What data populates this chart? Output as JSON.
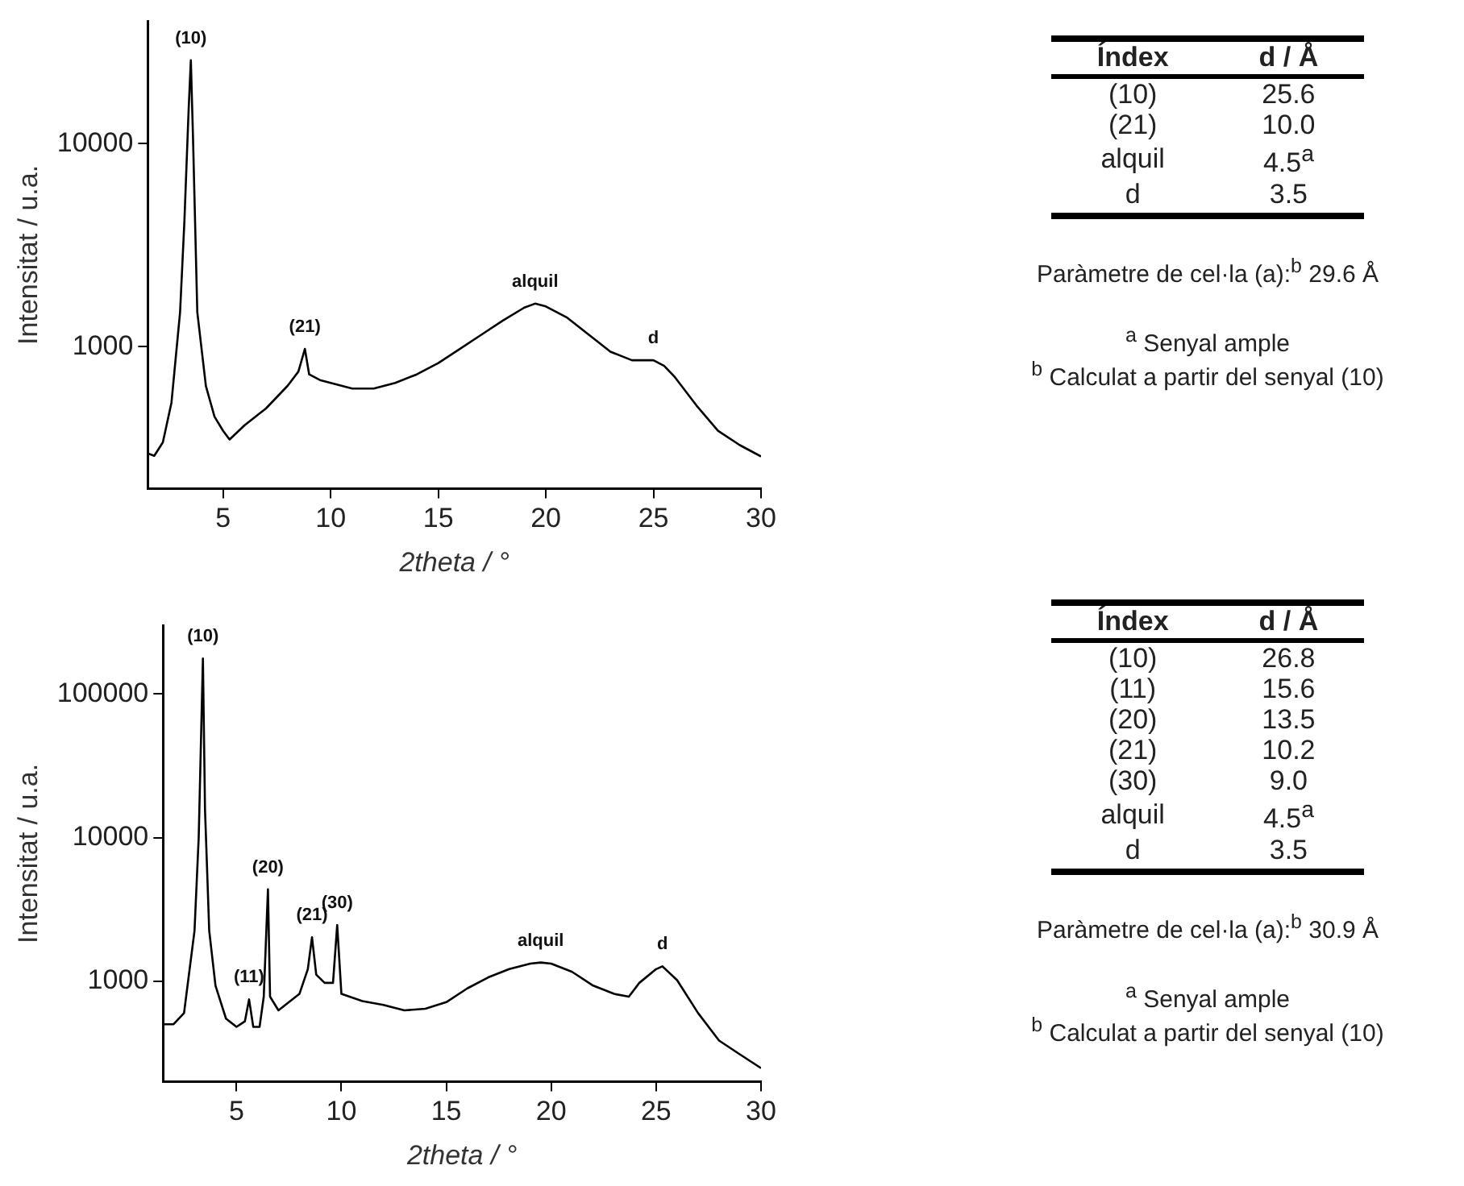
{
  "chart_data": [
    {
      "type": "line",
      "xlabel": "2theta / °",
      "ylabel": "Intensitat / u.a.",
      "log": "y",
      "grid": false,
      "legend": false,
      "marker": "none",
      "xlim": [
        1.5,
        30
      ],
      "xticks": [
        5,
        10,
        15,
        20,
        25,
        30
      ],
      "ylim": [
        200,
        40000
      ],
      "yticks": [
        1000,
        10000
      ],
      "series": [
        {
          "color": "#000000",
          "x": [
            1.5,
            1.8,
            2.2,
            2.6,
            3.0,
            3.2,
            3.4,
            3.5,
            3.6,
            3.8,
            4.2,
            4.6,
            5.0,
            5.3,
            6,
            7,
            8,
            8.5,
            8.8,
            9.0,
            9.5,
            10,
            11,
            12,
            13,
            14,
            15,
            16,
            17,
            18,
            19,
            19.5,
            20,
            21,
            22,
            23,
            24,
            25,
            25.5,
            26,
            27,
            28,
            29,
            30
          ],
          "values": [
            298,
            290,
            338,
            530,
            1480,
            4130,
            14900,
            25700,
            10800,
            1480,
            640,
            452,
            385,
            349,
            410,
            497,
            642,
            754,
            975,
            730,
            685,
            663,
            622,
            622,
            663,
            730,
            830,
            974,
            1144,
            1343,
            1557,
            1628,
            1577,
            1387,
            1144,
            944,
            857,
            857,
            804,
            707,
            513,
            385,
            328,
            288
          ]
        }
      ],
      "annotations": [
        {
          "text": "(10)",
          "x": 3.5,
          "y": 25700
        },
        {
          "text": "(21)",
          "x": 8.8,
          "y": 975
        },
        {
          "text": "alquil",
          "x": 19.5,
          "y": 1628
        },
        {
          "text": "d",
          "x": 25,
          "y": 857
        }
      ]
    },
    {
      "type": "other",
      "xlabel": "Índex",
      "ylabel": "d / Å",
      "categories": [
        "(10)",
        "(21)",
        "alquil",
        "d"
      ],
      "value_labels": [
        "25.6",
        "10.0",
        "4.5$^{a}$",
        "3.5"
      ],
      "annotations": [
        "Paràmetre de cel·la (a):$^{b}$ 29.6 Å",
        "$^{a}$ Senyal ample",
        "$^{b}$ Calculat a partir del senyal (10)"
      ]
    },
    {
      "type": "line",
      "xlabel": "2theta / °",
      "ylabel": "Intensitat / u.a.",
      "log": "y",
      "grid": false,
      "legend": false,
      "marker": "none",
      "xlim": [
        1.5,
        30
      ],
      "xticks": [
        5,
        10,
        15,
        20,
        25,
        30
      ],
      "ylim": [
        200,
        300000
      ],
      "yticks": [
        1000,
        10000,
        100000
      ],
      "series": [
        {
          "color": "#000000",
          "x": [
            1.5,
            2,
            2.5,
            3.0,
            3.2,
            3.4,
            3.5,
            3.7,
            4,
            4.5,
            5,
            5.4,
            5.6,
            5.8,
            6.1,
            6.3,
            6.5,
            6.6,
            7,
            8,
            8.4,
            8.6,
            8.8,
            9.2,
            9.6,
            9.8,
            10,
            11,
            12,
            13,
            14,
            15,
            16,
            17,
            18,
            19,
            19.5,
            20,
            21,
            22,
            23,
            23.7,
            24.2,
            25,
            25.3,
            26,
            27,
            28,
            29,
            30
          ],
          "values": [
            502,
            502,
            600,
            2250,
            10100,
            177000,
            15700,
            2250,
            932,
            549,
            481,
            525,
            747,
            481,
            481,
            781,
            4360,
            781,
            627,
            816,
            1214,
            2024,
            1111,
            974,
            974,
            2460,
            816,
            728,
            684,
            627,
            643,
            715,
            891,
            1064,
            1214,
            1326,
            1350,
            1326,
            1162,
            932,
            816,
            781,
            974,
            1214,
            1269,
            1018,
            600,
            386,
            309,
            248
          ]
        }
      ],
      "annotations": [
        {
          "text": "(10)",
          "x": 3.4,
          "y": 177000
        },
        {
          "text": "(11)",
          "x": 5.6,
          "y": 747
        },
        {
          "text": "(20)",
          "x": 6.5,
          "y": 4360
        },
        {
          "text": "(21)",
          "x": 8.6,
          "y": 2024
        },
        {
          "text": "(30)",
          "x": 9.8,
          "y": 2460
        },
        {
          "text": "alquil",
          "x": 19.5,
          "y": 1350
        },
        {
          "text": "d",
          "x": 25.3,
          "y": 1269
        }
      ]
    },
    {
      "type": "other",
      "xlabel": "Índex",
      "ylabel": "d / Å",
      "categories": [
        "(10)",
        "(11)",
        "(20)",
        "(21)",
        "(30)",
        "alquil",
        "d"
      ],
      "value_labels": [
        "26.8",
        "15.6",
        "13.5",
        "10.2",
        "9.0",
        "4.5$^{a}$",
        "3.5"
      ],
      "annotations": [
        "Paràmetre de cel·la (a):$^{b}$ 30.9 Å",
        "$^{a}$ Senyal ample",
        "$^{b}$ Calculat a partir del senyal (10)"
      ]
    }
  ]
}
